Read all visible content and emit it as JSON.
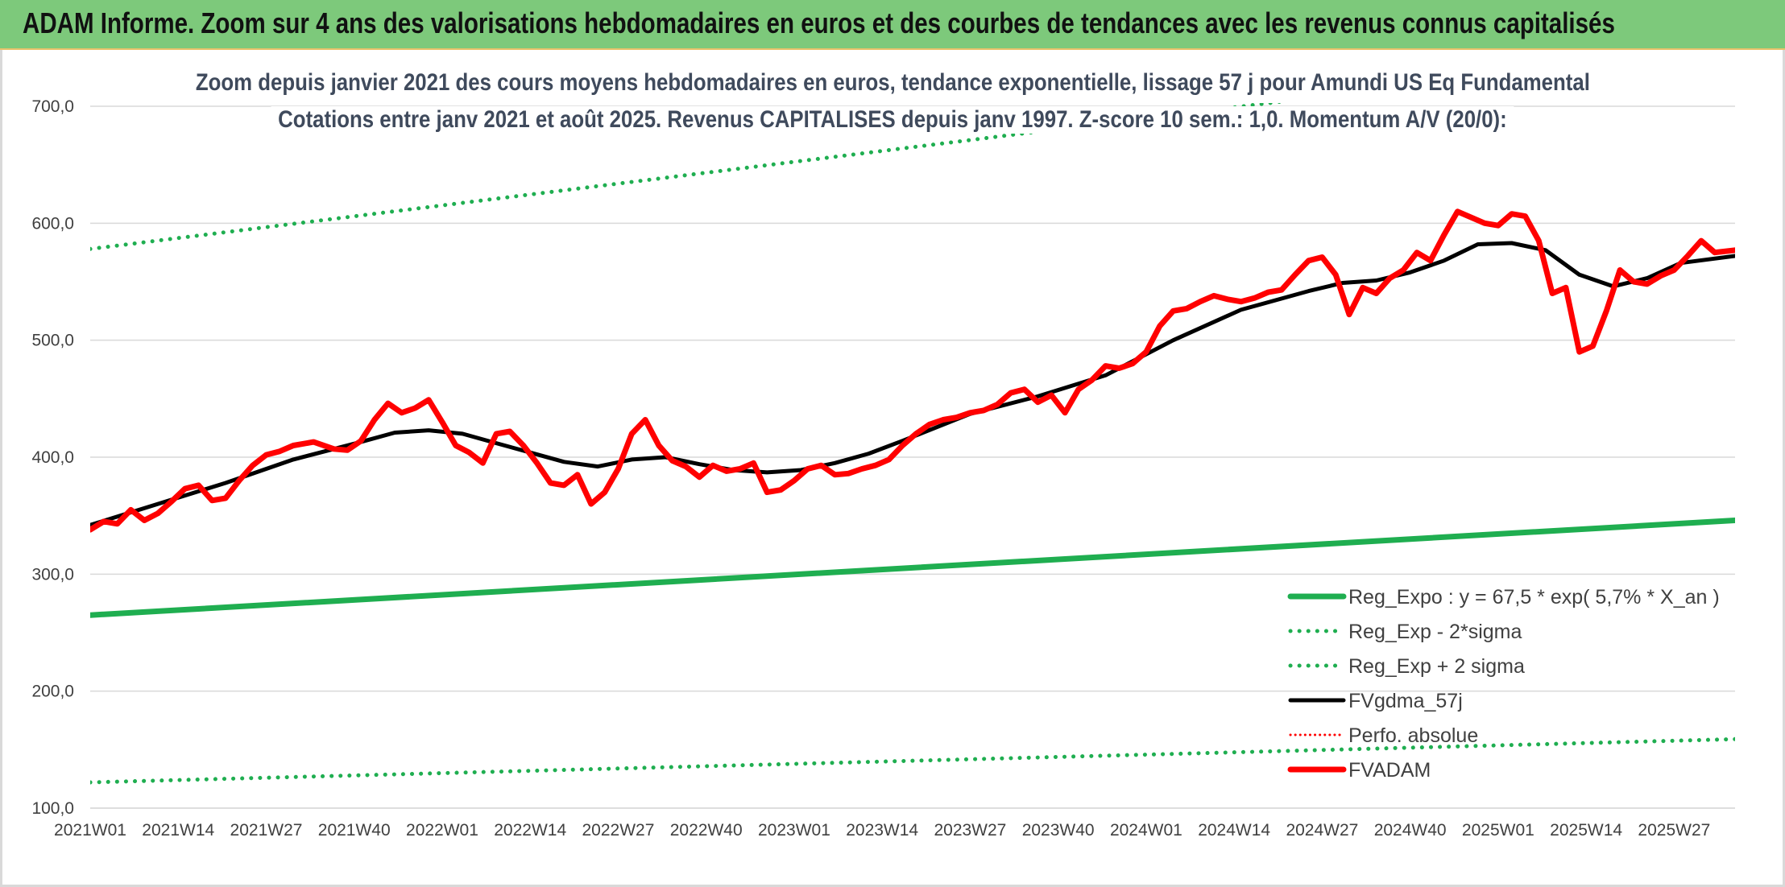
{
  "banner": {
    "title": "ADAM Informe. Zoom sur 4 ans des valorisations hebdomadaires en euros et des courbes de tendances avec les revenus connus capitalisés"
  },
  "chart_data": {
    "type": "line",
    "title": "Zoom depuis janvier 2021 des cours moyens hebdomadaires en euros, tendance exponentielle, lissage 57 j pour Amundi US Eq Fundamental",
    "subtitle": "Cotations entre janv 2021 et août 2025. Revenus CAPITALISES depuis janv 1997. Z-score 10 sem.: 1,0. Momentum A/V (20/0):",
    "ylim": [
      100,
      700
    ],
    "y_ticks": [
      "100,0",
      "200,0",
      "300,0",
      "400,0",
      "500,0",
      "600,0",
      "700,0"
    ],
    "x_tick_labels": [
      "2021W01",
      "2021W14",
      "2021W27",
      "2021W40",
      "2022W01",
      "2022W14",
      "2022W27",
      "2022W40",
      "2023W01",
      "2023W14",
      "2023W27",
      "2023W40",
      "2024W01",
      "2024W14",
      "2024W27",
      "2024W40",
      "2025W01",
      "2025W14",
      "2025W27"
    ],
    "x_range_weeks": [
      0,
      243
    ],
    "grid": "horizontal",
    "legend_position": "bottom-right",
    "colors": {
      "green": "#1fae50",
      "black": "#000000",
      "red": "#ff0000",
      "grid": "#d9d9d9"
    },
    "series": [
      {
        "name": "Reg_Expo : y = 67,5 * exp( 5,7% *  X_an )",
        "style": "solid-green",
        "x": [
          0,
          243
        ],
        "y": [
          265,
          346
        ]
      },
      {
        "name": "Reg_Exp - 2*sigma",
        "style": "dotted-green",
        "x": [
          0,
          243
        ],
        "y": [
          122,
          159
        ]
      },
      {
        "name": "Reg_Exp + 2 sigma",
        "style": "dotted-green",
        "x": [
          0,
          243
        ],
        "y": [
          578,
          752
        ]
      },
      {
        "name": "FVgdma_57j",
        "style": "solid-black",
        "x": [
          0,
          10,
          20,
          30,
          40,
          45,
          50,
          55,
          60,
          65,
          70,
          75,
          80,
          85,
          90,
          95,
          100,
          105,
          110,
          115,
          120,
          130,
          140,
          150,
          160,
          170,
          180,
          185,
          190,
          195,
          200,
          205,
          210,
          215,
          220,
          225,
          230,
          235,
          243
        ],
        "y": [
          342,
          360,
          378,
          398,
          413,
          421,
          423,
          420,
          412,
          404,
          396,
          392,
          398,
          400,
          394,
          389,
          387,
          389,
          395,
          403,
          414,
          437,
          452,
          470,
          500,
          526,
          542,
          549,
          551,
          558,
          568,
          582,
          583,
          577,
          556,
          546,
          553,
          566,
          572
        ]
      },
      {
        "name": "Perfo. absolue",
        "style": "dotted-red",
        "x": [],
        "y": []
      },
      {
        "name": "FVADAM",
        "style": "solid-red",
        "x": [
          0,
          2,
          4,
          6,
          8,
          10,
          12,
          14,
          16,
          18,
          20,
          22,
          24,
          26,
          28,
          30,
          33,
          36,
          38,
          40,
          42,
          44,
          46,
          48,
          50,
          52,
          54,
          56,
          58,
          60,
          62,
          64,
          66,
          68,
          70,
          72,
          74,
          76,
          78,
          80,
          82,
          84,
          86,
          88,
          90,
          92,
          94,
          96,
          98,
          100,
          102,
          104,
          106,
          108,
          110,
          112,
          114,
          116,
          118,
          120,
          122,
          124,
          126,
          128,
          130,
          132,
          134,
          136,
          138,
          140,
          142,
          144,
          146,
          148,
          150,
          152,
          154,
          156,
          158,
          160,
          162,
          164,
          166,
          168,
          170,
          172,
          174,
          176,
          178,
          180,
          182,
          184,
          186,
          188,
          190,
          192,
          194,
          196,
          198,
          200,
          202,
          204,
          206,
          208,
          210,
          212,
          214,
          216,
          218,
          220,
          222,
          224,
          226,
          228,
          230,
          232,
          234,
          236,
          238,
          240,
          243
        ],
        "y": [
          338,
          345,
          343,
          355,
          346,
          352,
          362,
          373,
          376,
          363,
          365,
          380,
          393,
          402,
          405,
          410,
          413,
          407,
          406,
          414,
          432,
          446,
          438,
          442,
          449,
          430,
          410,
          404,
          395,
          420,
          422,
          410,
          395,
          378,
          376,
          385,
          360,
          370,
          390,
          420,
          432,
          410,
          397,
          392,
          383,
          393,
          388,
          390,
          395,
          370,
          372,
          380,
          390,
          393,
          385,
          386,
          390,
          393,
          398,
          410,
          420,
          428,
          432,
          434,
          438,
          440,
          445,
          455,
          458,
          447,
          453,
          438,
          458,
          466,
          478,
          476,
          480,
          490,
          512,
          525,
          527,
          533,
          538,
          535,
          533,
          536,
          541,
          543,
          556,
          568,
          571,
          556,
          522,
          545,
          540,
          553,
          560,
          575,
          568,
          590,
          610,
          605,
          600,
          598,
          608,
          606,
          585,
          540,
          545,
          490,
          495,
          525,
          560,
          550,
          548,
          555,
          560,
          572,
          585,
          575,
          577
        ]
      }
    ]
  }
}
